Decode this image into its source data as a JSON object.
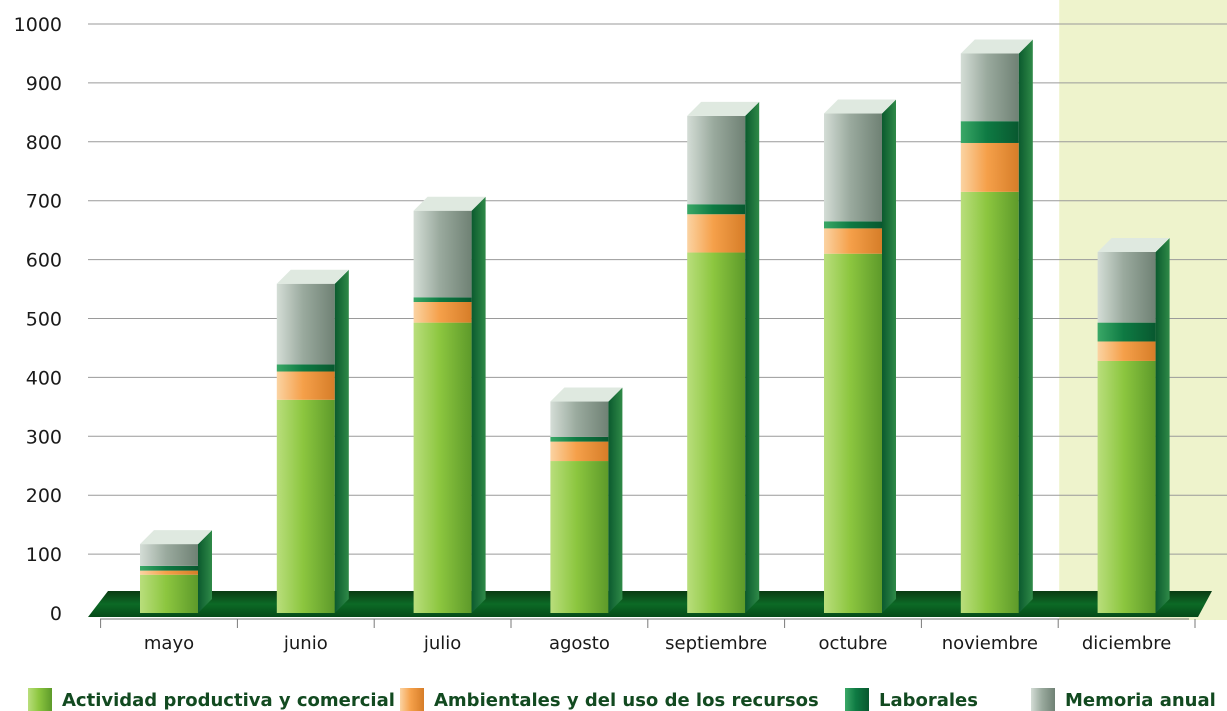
{
  "chart_data": {
    "type": "bar",
    "stacked": true,
    "three_d": true,
    "title": "",
    "xlabel": "",
    "ylabel": "",
    "ylim": [
      0,
      1000
    ],
    "yticks": [
      0,
      100,
      200,
      300,
      400,
      500,
      600,
      700,
      800,
      900,
      1000
    ],
    "grid": true,
    "legend_position": "bottom",
    "highlight_category": "diciembre",
    "highlight_color": "#eef3cc",
    "categories": [
      "mayo",
      "junio",
      "julio",
      "agosto",
      "septiembre",
      "octubre",
      "noviembre",
      "diciembre"
    ],
    "series": [
      {
        "name": "Actividad productiva y comercial",
        "color": "#8cc63f",
        "values": [
          65,
          362,
          493,
          258,
          612,
          610,
          715,
          428
        ]
      },
      {
        "name": "Ambientales y del uso de los recursos",
        "color": "#f5a04a",
        "values": [
          7,
          48,
          35,
          33,
          65,
          43,
          83,
          33
        ]
      },
      {
        "name": "Laborales",
        "color": "#0e7a43",
        "values": [
          8,
          12,
          8,
          8,
          17,
          12,
          37,
          32
        ]
      },
      {
        "name": "Memoria anual",
        "color": "#9aaa9e",
        "values": [
          37,
          137,
          147,
          60,
          150,
          183,
          115,
          120
        ]
      }
    ]
  }
}
